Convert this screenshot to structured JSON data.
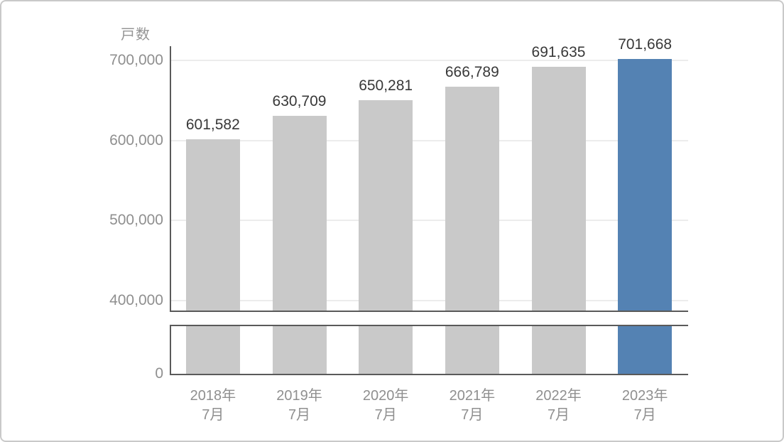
{
  "chart_data": {
    "type": "bar",
    "title": "戸数",
    "categories": [
      {
        "line1": "2018年",
        "line2": "7月"
      },
      {
        "line1": "2019年",
        "line2": "7月"
      },
      {
        "line1": "2020年",
        "line2": "7月"
      },
      {
        "line1": "2021年",
        "line2": "7月"
      },
      {
        "line1": "2022年",
        "line2": "7月"
      },
      {
        "line1": "2023年",
        "line2": "7月"
      }
    ],
    "values": [
      601582,
      630709,
      650281,
      666789,
      691635,
      701668
    ],
    "value_labels": [
      "601,582",
      "630,709",
      "650,281",
      "666,789",
      "691,635",
      "701,668"
    ],
    "highlight_index": 5,
    "y_axis": {
      "ticks": [
        {
          "label": "700,000",
          "value": 700000
        },
        {
          "label": "600,000",
          "value": 600000
        },
        {
          "label": "500,000",
          "value": 500000
        },
        {
          "label": "400,000",
          "value": 400000
        }
      ],
      "zero_label": "0",
      "axis_break": true
    },
    "layout_hints": {
      "ylim_main": [
        400000,
        700000
      ],
      "grid": true,
      "legend": false,
      "orientation": "vertical",
      "broken_axis_to_zero": true
    },
    "colors": {
      "bar": "#c9c9c9",
      "highlight": "#5482b3",
      "axis": "#5a5a5a",
      "grid": "#ececec",
      "tick_text": "#8f8f8f",
      "title_text": "#949494",
      "value_text": "#383838"
    }
  }
}
